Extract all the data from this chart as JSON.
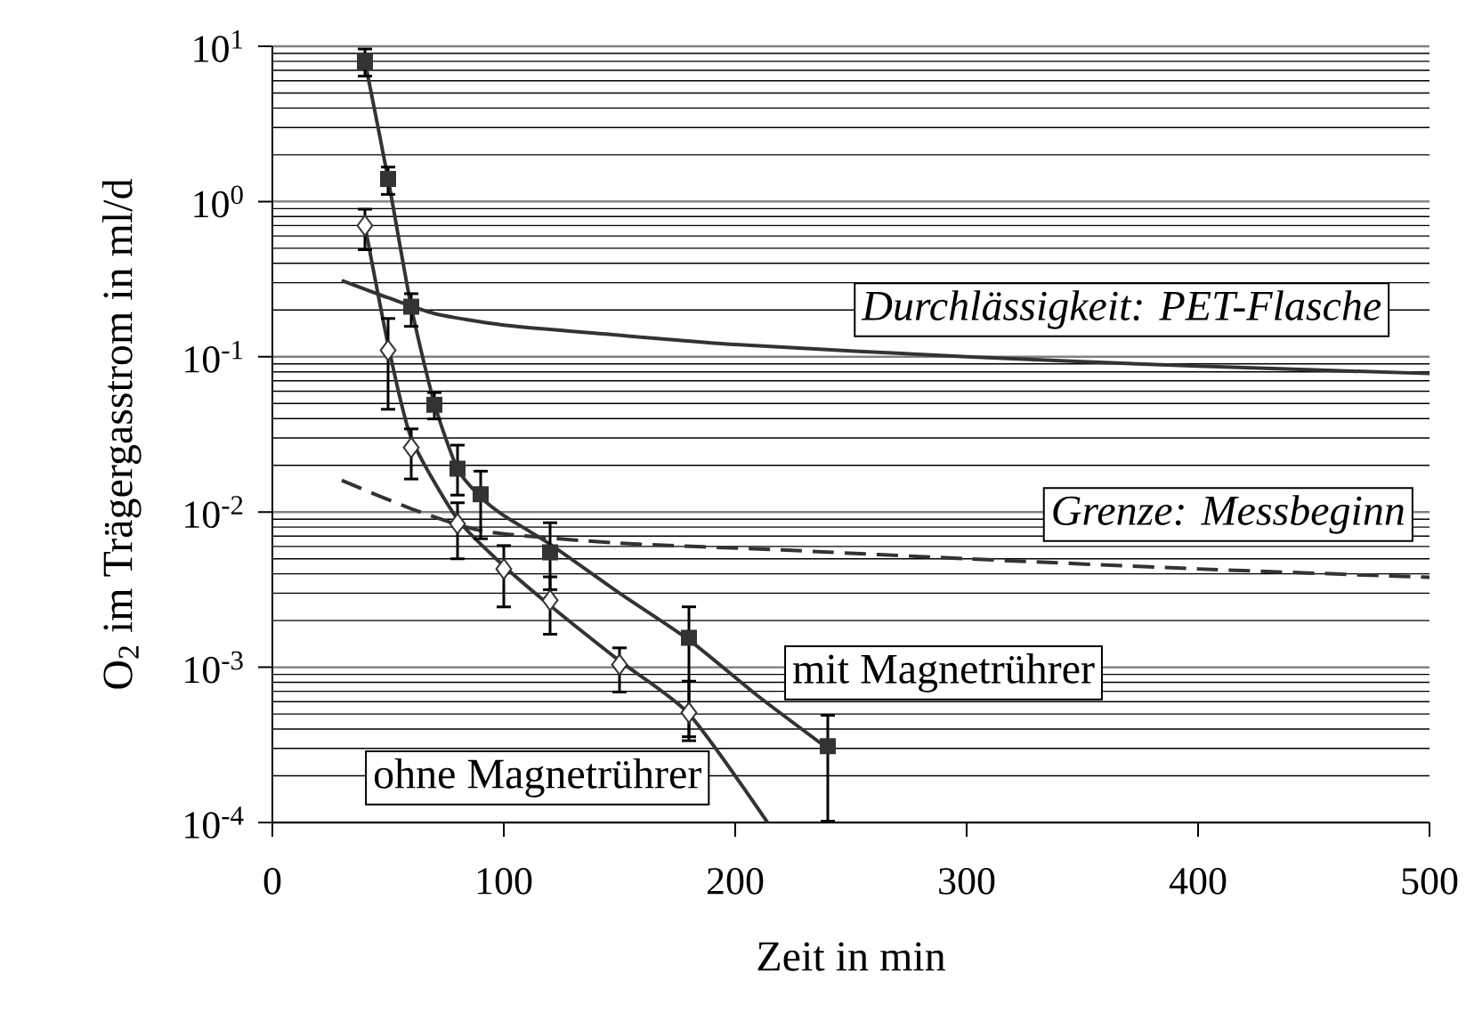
{
  "chart_data": {
    "type": "scatter",
    "xlabel": "Zeit in min",
    "ylabel": "O$_{2}$ im Trägergasstrom in ml/d",
    "log": "y",
    "grid": "y",
    "xlim": [
      0,
      500
    ],
    "ylim": [
      0.0001,
      10
    ],
    "xticks": [
      0,
      100,
      200,
      300,
      400,
      500
    ],
    "yticks": [
      {
        "value": 0.0001,
        "label": "10$^{-4}$"
      },
      {
        "value": 0.001,
        "label": "10$^{-3}$"
      },
      {
        "value": 0.01,
        "label": "10$^{-2}$"
      },
      {
        "value": 0.1,
        "label": "10$^{-1}$"
      },
      {
        "value": 1,
        "label": "10$^{0}$"
      },
      {
        "value": 10,
        "label": "10$^{1}$"
      }
    ],
    "series": [
      {
        "name": "mit Magnetrührer",
        "marker": "square",
        "color": "#333333",
        "x": [
          40,
          50,
          60,
          70,
          80,
          90,
          120,
          180,
          240
        ],
        "values": [
          8.0,
          1.4,
          0.21,
          0.049,
          0.019,
          0.013,
          0.0055,
          0.00155,
          0.00031
        ],
        "errors": [
          [
            6.3,
            9.8
          ],
          [
            1.09,
            1.7
          ],
          [
            0.154,
            0.26
          ],
          [
            0.039,
            0.06
          ],
          [
            0.0126,
            0.0275
          ],
          [
            0.0066,
            0.0187
          ],
          [
            0.0031,
            0.0087
          ],
          [
            0.00033,
            0.0025
          ],
          [
            0.0001,
            0.0005
          ]
        ]
      },
      {
        "type": "line",
        "color": "#333333",
        "x": [
          40,
          50,
          60,
          70,
          80,
          90,
          100,
          120,
          150,
          180,
          210,
          240
        ],
        "values": [
          8.0,
          1.4,
          0.21,
          0.05,
          0.019,
          0.0125,
          0.0095,
          0.0062,
          0.003,
          0.0015,
          0.00065,
          0.0003
        ]
      },
      {
        "name": "ohne Magnetrührer",
        "marker": "diamond",
        "color": "#333333",
        "x": [
          40,
          50,
          60,
          80,
          100,
          120,
          150,
          180
        ],
        "values": [
          0.7,
          0.11,
          0.026,
          0.0084,
          0.0043,
          0.0027,
          0.00104,
          0.00051
        ],
        "errors": [
          [
            0.48,
            0.91
          ],
          [
            0.045,
            0.18
          ],
          [
            0.016,
            0.035
          ],
          [
            0.0049,
            0.0117
          ],
          [
            0.0024,
            0.0062
          ],
          [
            0.0016,
            0.0039
          ],
          [
            0.00068,
            0.00136
          ],
          [
            0.00035,
            0.00083
          ]
        ]
      },
      {
        "type": "line",
        "color": "#333333",
        "x": [
          40,
          50,
          60,
          80,
          100,
          120,
          150,
          180,
          214
        ],
        "values": [
          0.7,
          0.12,
          0.03,
          0.009,
          0.0045,
          0.0025,
          0.0011,
          0.0005,
          0.0001
        ]
      },
      {
        "name": "Durchlässigkeit: PET-Flasche",
        "type": "line",
        "color": "#333333",
        "x": [
          30,
          50,
          70,
          100,
          144,
          200,
          300,
          400,
          500
        ],
        "values": [
          0.31,
          0.24,
          0.19,
          0.16,
          0.14,
          0.12,
          0.1,
          0.087,
          0.078
        ]
      },
      {
        "name": "Grenze: Messbeginn",
        "type": "line",
        "line_style": "dashed",
        "color": "#333333",
        "x": [
          30,
          60,
          92,
          150,
          220,
          300,
          400,
          500
        ],
        "values": [
          0.016,
          0.0105,
          0.0075,
          0.0063,
          0.0057,
          0.005,
          0.0043,
          0.0038
        ]
      }
    ]
  }
}
